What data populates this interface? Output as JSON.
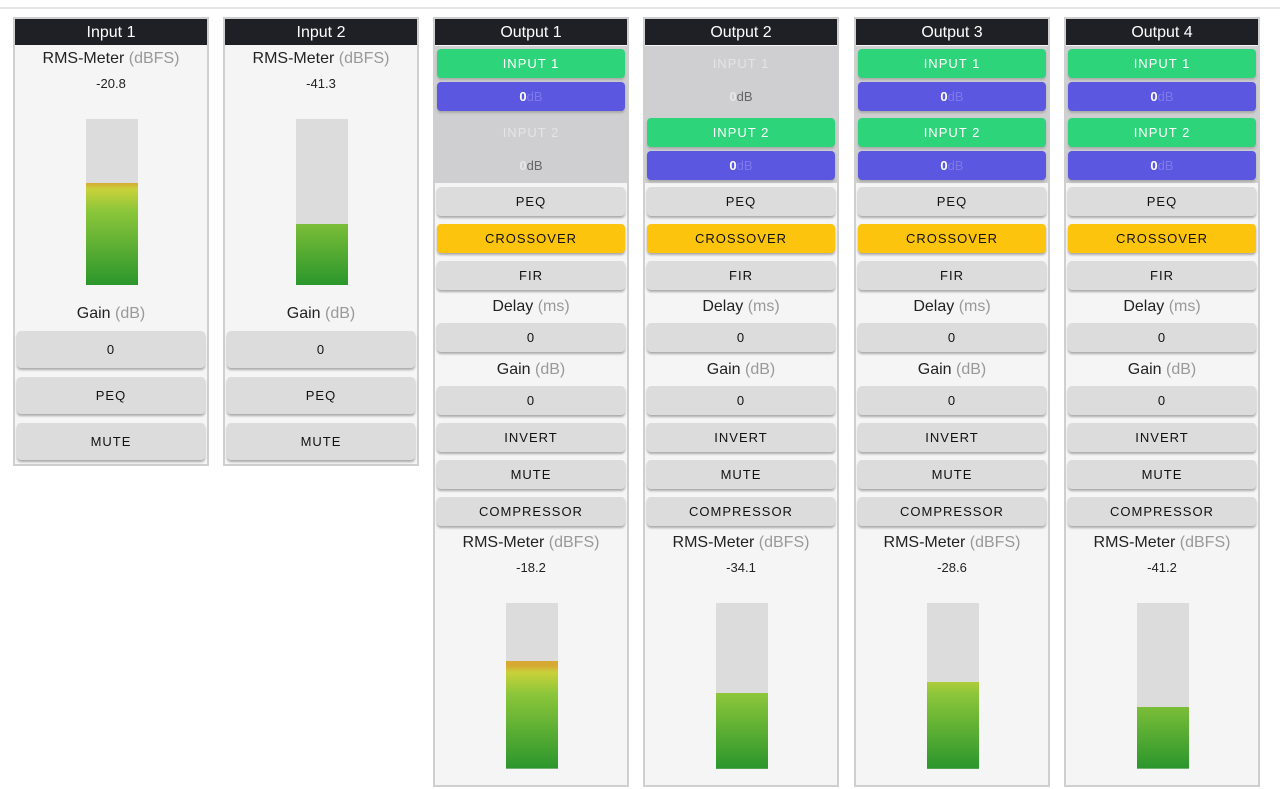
{
  "inputs": [
    {
      "title": "Input 1",
      "meter_label": "RMS-Meter",
      "meter_unit": "(dBFS)",
      "meter_value": -20.8,
      "gain_label": "Gain",
      "gain_unit": "(dB)",
      "gain": 0,
      "buttons": [
        "PEQ",
        "MUTE"
      ]
    },
    {
      "title": "Input 2",
      "meter_label": "RMS-Meter",
      "meter_unit": "(dBFS)",
      "meter_value": -41.3,
      "gain_label": "Gain",
      "gain_unit": "(dB)",
      "gain": 0,
      "buttons": [
        "PEQ",
        "MUTE"
      ]
    }
  ],
  "outputs": [
    {
      "title": "Output 1",
      "routes": [
        {
          "source": "INPUT 1",
          "active": true,
          "gain": 0,
          "unit": "dB"
        },
        {
          "source": "INPUT 2",
          "active": false,
          "gain": 0,
          "unit": "dB"
        }
      ],
      "buttons_top": [
        {
          "label": "PEQ",
          "active": false
        },
        {
          "label": "CROSSOVER",
          "active": true
        },
        {
          "label": "FIR",
          "active": false
        }
      ],
      "delay_label": "Delay",
      "delay_unit": "(ms)",
      "delay": 0,
      "gain_label": "Gain",
      "gain_unit": "(dB)",
      "gain": 0,
      "buttons_bottom": [
        "INVERT",
        "MUTE",
        "COMPRESSOR"
      ],
      "meter_label": "RMS-Meter",
      "meter_unit": "(dBFS)",
      "meter_value": -18.2
    },
    {
      "title": "Output 2",
      "routes": [
        {
          "source": "INPUT 1",
          "active": false,
          "gain": 0,
          "unit": "dB"
        },
        {
          "source": "INPUT 2",
          "active": true,
          "gain": 0,
          "unit": "dB"
        }
      ],
      "buttons_top": [
        {
          "label": "PEQ",
          "active": false
        },
        {
          "label": "CROSSOVER",
          "active": true
        },
        {
          "label": "FIR",
          "active": false
        }
      ],
      "delay_label": "Delay",
      "delay_unit": "(ms)",
      "delay": 0,
      "gain_label": "Gain",
      "gain_unit": "(dB)",
      "gain": 0,
      "buttons_bottom": [
        "INVERT",
        "MUTE",
        "COMPRESSOR"
      ],
      "meter_label": "RMS-Meter",
      "meter_unit": "(dBFS)",
      "meter_value": -34.1
    },
    {
      "title": "Output 3",
      "routes": [
        {
          "source": "INPUT 1",
          "active": true,
          "gain": 0,
          "unit": "dB"
        },
        {
          "source": "INPUT 2",
          "active": true,
          "gain": 0,
          "unit": "dB"
        }
      ],
      "buttons_top": [
        {
          "label": "PEQ",
          "active": false
        },
        {
          "label": "CROSSOVER",
          "active": true
        },
        {
          "label": "FIR",
          "active": false
        }
      ],
      "delay_label": "Delay",
      "delay_unit": "(ms)",
      "delay": 0,
      "gain_label": "Gain",
      "gain_unit": "(dB)",
      "gain": 0,
      "buttons_bottom": [
        "INVERT",
        "MUTE",
        "COMPRESSOR"
      ],
      "meter_label": "RMS-Meter",
      "meter_unit": "(dBFS)",
      "meter_value": -28.6
    },
    {
      "title": "Output 4",
      "routes": [
        {
          "source": "INPUT 1",
          "active": true,
          "gain": 0,
          "unit": "dB"
        },
        {
          "source": "INPUT 2",
          "active": true,
          "gain": 0,
          "unit": "dB"
        }
      ],
      "buttons_top": [
        {
          "label": "PEQ",
          "active": false
        },
        {
          "label": "CROSSOVER",
          "active": true
        },
        {
          "label": "FIR",
          "active": false
        }
      ],
      "delay_label": "Delay",
      "delay_unit": "(ms)",
      "delay": 0,
      "gain_label": "Gain",
      "gain_unit": "(dB)",
      "gain": 0,
      "buttons_bottom": [
        "INVERT",
        "MUTE",
        "COMPRESSOR"
      ],
      "meter_label": "RMS-Meter",
      "meter_unit": "(dBFS)",
      "meter_value": -41.2
    }
  ]
}
